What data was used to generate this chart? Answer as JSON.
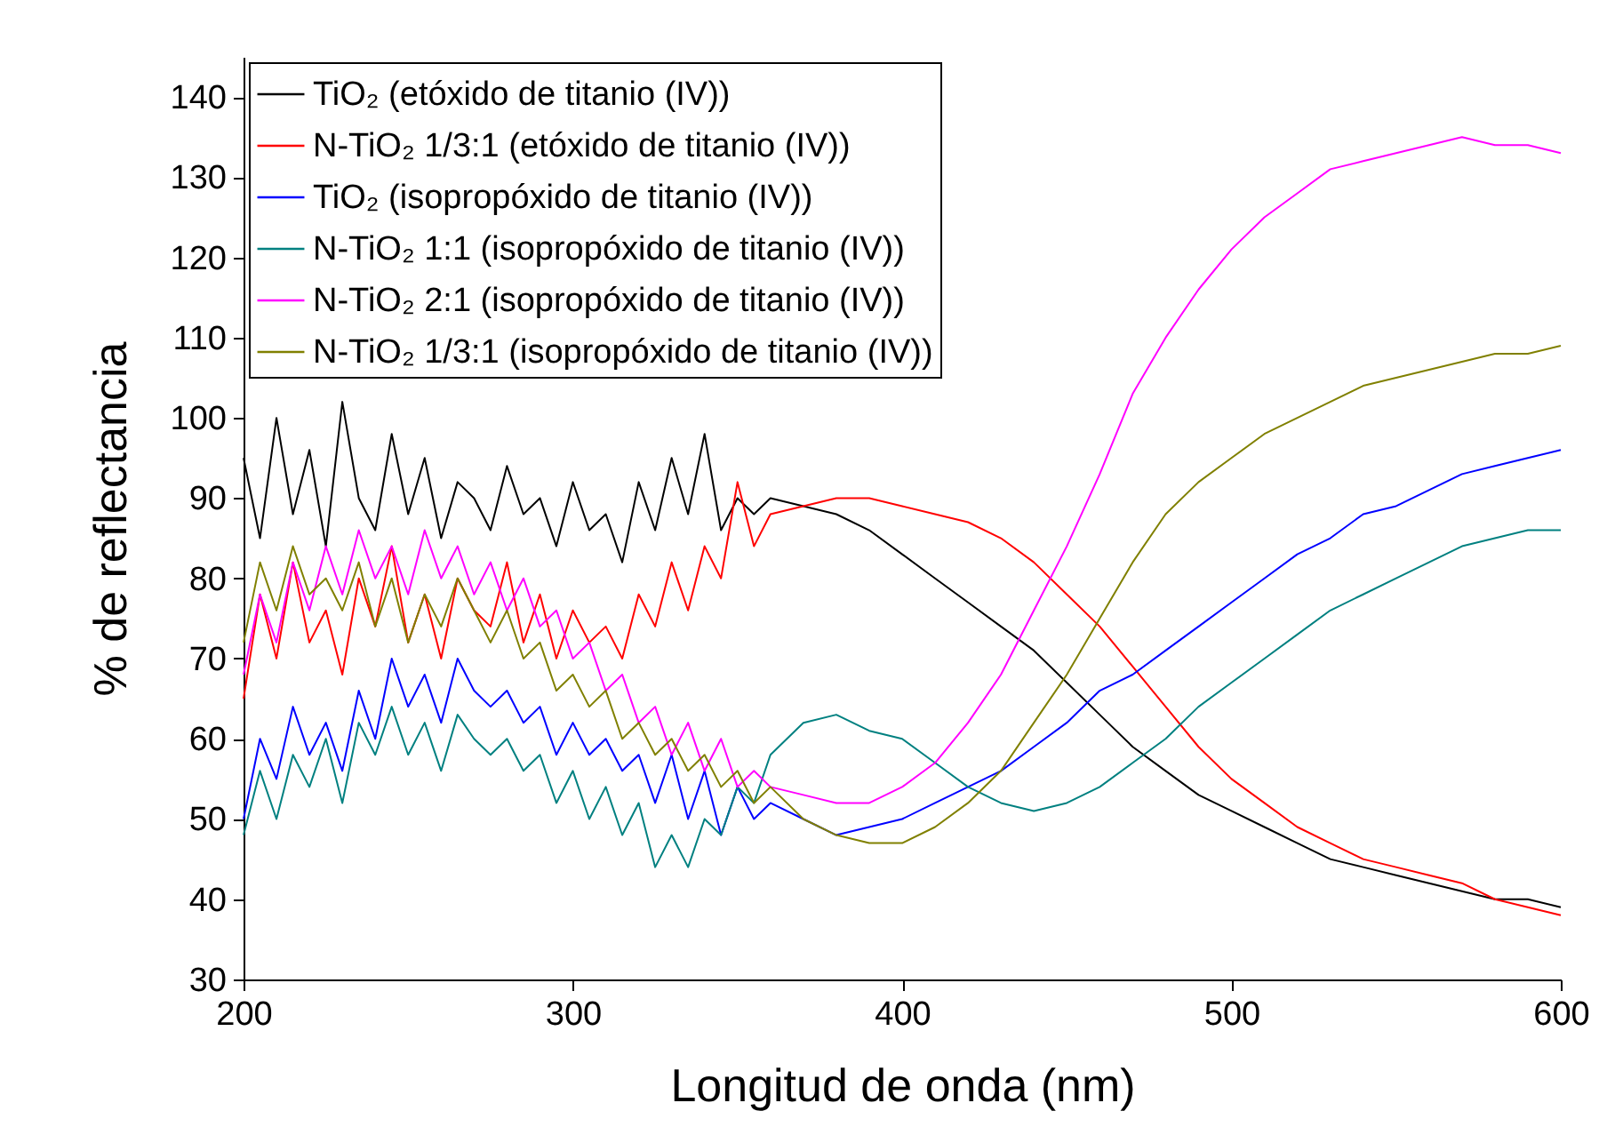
{
  "chart_data": {
    "type": "line",
    "xlabel": "Longitud de onda (nm)",
    "ylabel": "% de reflectancia",
    "x": [
      200,
      205,
      210,
      215,
      220,
      225,
      230,
      235,
      240,
      245,
      250,
      255,
      260,
      265,
      270,
      275,
      280,
      285,
      290,
      295,
      300,
      305,
      310,
      315,
      320,
      325,
      330,
      335,
      340,
      345,
      350,
      355,
      360,
      370,
      380,
      390,
      400,
      410,
      420,
      430,
      440,
      450,
      460,
      470,
      480,
      490,
      500,
      510,
      520,
      530,
      540,
      550,
      560,
      570,
      580,
      590,
      600
    ],
    "series": [
      {
        "name": "TiO₂ (etóxido de titanio (IV))",
        "color": "#000000",
        "values": [
          95,
          85,
          100,
          88,
          96,
          84,
          102,
          90,
          86,
          98,
          88,
          95,
          85,
          92,
          90,
          86,
          94,
          88,
          90,
          84,
          92,
          86,
          88,
          82,
          92,
          86,
          95,
          88,
          98,
          86,
          90,
          88,
          90,
          89,
          88,
          86,
          83,
          80,
          77,
          74,
          71,
          67,
          63,
          59,
          56,
          53,
          51,
          49,
          47,
          45,
          44,
          43,
          42,
          41,
          40,
          40,
          39
        ]
      },
      {
        "name": "N-TiO₂ 1/3:1 (etóxido de titanio (IV))",
        "color": "#ff0000",
        "values": [
          65,
          78,
          70,
          82,
          72,
          76,
          68,
          80,
          74,
          84,
          72,
          78,
          70,
          80,
          76,
          74,
          82,
          72,
          78,
          70,
          76,
          72,
          74,
          70,
          78,
          74,
          82,
          76,
          84,
          80,
          92,
          84,
          88,
          89,
          90,
          90,
          89,
          88,
          87,
          85,
          82,
          78,
          74,
          69,
          64,
          59,
          55,
          52,
          49,
          47,
          45,
          44,
          43,
          42,
          40,
          39,
          38
        ]
      },
      {
        "name": "TiO₂ (isopropóxido de titanio (IV))",
        "color": "#0000ff",
        "values": [
          50,
          60,
          55,
          64,
          58,
          62,
          56,
          66,
          60,
          70,
          64,
          68,
          62,
          70,
          66,
          64,
          66,
          62,
          64,
          58,
          62,
          58,
          60,
          56,
          58,
          52,
          58,
          50,
          56,
          48,
          54,
          50,
          52,
          50,
          48,
          49,
          50,
          52,
          54,
          56,
          59,
          62,
          66,
          68,
          71,
          74,
          77,
          80,
          83,
          85,
          88,
          89,
          91,
          93,
          94,
          95,
          96
        ]
      },
      {
        "name": "N-TiO₂ 1:1 (isopropóxido de titanio (IV))",
        "color": "#008080",
        "values": [
          48,
          56,
          50,
          58,
          54,
          60,
          52,
          62,
          58,
          64,
          58,
          62,
          56,
          63,
          60,
          58,
          60,
          56,
          58,
          52,
          56,
          50,
          54,
          48,
          52,
          44,
          48,
          44,
          50,
          48,
          54,
          52,
          58,
          62,
          63,
          61,
          60,
          57,
          54,
          52,
          51,
          52,
          54,
          57,
          60,
          64,
          67,
          70,
          73,
          76,
          78,
          80,
          82,
          84,
          85,
          86,
          86
        ]
      },
      {
        "name": "N-TiO₂ 2:1 (isopropóxido de titanio (IV))",
        "color": "#ff00ff",
        "values": [
          68,
          78,
          72,
          82,
          76,
          84,
          78,
          86,
          80,
          84,
          78,
          86,
          80,
          84,
          78,
          82,
          76,
          80,
          74,
          76,
          70,
          72,
          66,
          68,
          62,
          64,
          58,
          62,
          56,
          60,
          54,
          56,
          54,
          53,
          52,
          52,
          54,
          57,
          62,
          68,
          76,
          84,
          93,
          103,
          110,
          116,
          121,
          125,
          128,
          131,
          132,
          133,
          134,
          135,
          134,
          134,
          133
        ]
      },
      {
        "name": "N-TiO₂ 1/3:1 (isopropóxido de titanio (IV))",
        "color": "#808000",
        "values": [
          72,
          82,
          76,
          84,
          78,
          80,
          76,
          82,
          74,
          80,
          72,
          78,
          74,
          80,
          76,
          72,
          76,
          70,
          72,
          66,
          68,
          64,
          66,
          60,
          62,
          58,
          60,
          56,
          58,
          54,
          56,
          52,
          54,
          50,
          48,
          47,
          47,
          49,
          52,
          56,
          62,
          68,
          75,
          82,
          88,
          92,
          95,
          98,
          100,
          102,
          104,
          105,
          106,
          107,
          108,
          108,
          109
        ]
      }
    ],
    "xlim": [
      200,
      600
    ],
    "xticks": [
      200,
      300,
      400,
      500,
      600
    ],
    "ylim": [
      30,
      145
    ],
    "yticks": [
      30,
      40,
      50,
      60,
      70,
      80,
      90,
      100,
      110,
      120,
      130,
      140
    ],
    "legend": "top left",
    "grid": false,
    "line_style": "solid"
  }
}
